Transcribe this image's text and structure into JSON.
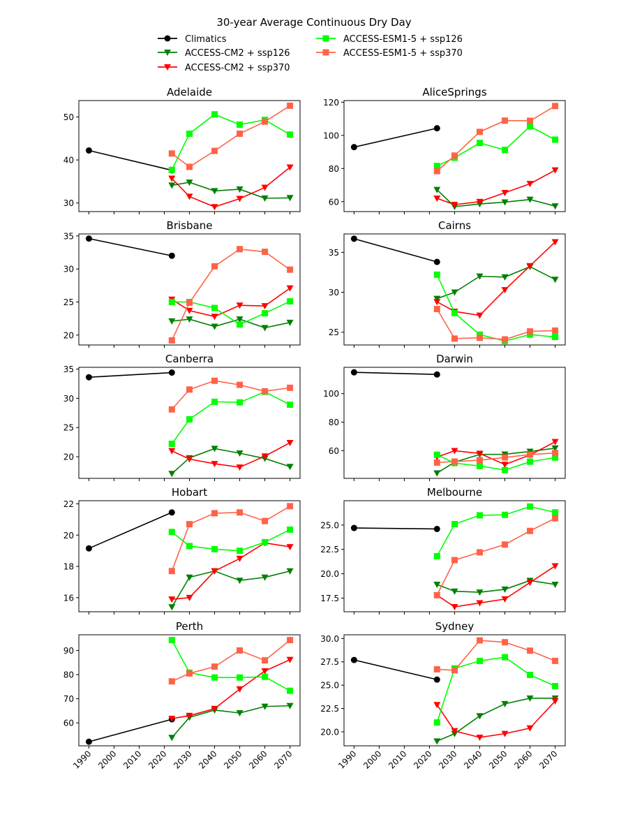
{
  "chart_data": {
    "type": "line",
    "title": "30-year Average Continuous Dry Day",
    "legend_placement": "top-center",
    "x_ticks": [
      1990,
      2000,
      2010,
      2020,
      2030,
      2040,
      2050,
      2060,
      2070
    ],
    "xlim": [
      1986,
      2074
    ],
    "grid": false,
    "series_styles": [
      {
        "name": "Climatics",
        "color": "#000000",
        "marker": "circle"
      },
      {
        "name": "ACCESS-CM2 + ssp126",
        "color": "#008000",
        "marker": "triangle-down"
      },
      {
        "name": "ACCESS-CM2 + ssp370",
        "color": "#ff0000",
        "marker": "triangle-down"
      },
      {
        "name": "ACCESS-ESM1-5 + ssp126",
        "color": "#00ff00",
        "marker": "square"
      },
      {
        "name": "ACCESS-ESM1-5 + ssp370",
        "color": "#ff6347",
        "marker": "square"
      }
    ],
    "climatics_x": [
      1990,
      2023
    ],
    "model_x": [
      2023,
      2030,
      2040,
      2050,
      2060,
      2070
    ],
    "panels": [
      {
        "title": "Adelaide",
        "ylim": [
          28,
          53.8
        ],
        "yticks": [
          "30",
          "40",
          "50"
        ],
        "series": [
          [
            42.2,
            37.6
          ],
          [
            34.1,
            34.8,
            32.8,
            33.2,
            31.1,
            31.2
          ],
          [
            35.7,
            31.5,
            29.1,
            31.0,
            33.6,
            38.3
          ],
          [
            37.7,
            46.1,
            50.6,
            48.2,
            49.3,
            45.9
          ],
          [
            41.5,
            38.4,
            42.1,
            46.1,
            48.9,
            52.6
          ]
        ]
      },
      {
        "title": "AliceSprings",
        "ylim": [
          54,
          121
        ],
        "yticks": [
          "60",
          "80",
          "100",
          "120"
        ],
        "series": [
          [
            92.9,
            104.3
          ],
          [
            67.2,
            57.0,
            58.6,
            59.7,
            61.3,
            57.3
          ],
          [
            62.0,
            58.2,
            60.0,
            65.4,
            70.8,
            79.0
          ],
          [
            81.5,
            86.5,
            95.4,
            91.2,
            105.4,
            97.4
          ],
          [
            78.4,
            87.8,
            102.1,
            108.9,
            108.8,
            117.7
          ]
        ]
      },
      {
        "title": "Brisbane",
        "ylim": [
          18.5,
          35.3
        ],
        "yticks": [
          "20",
          "25",
          "30",
          "35"
        ],
        "series": [
          [
            34.6,
            32.0
          ],
          [
            22.1,
            22.4,
            21.3,
            22.4,
            21.1,
            21.9
          ],
          [
            25.4,
            23.7,
            22.8,
            24.5,
            24.4,
            27.1
          ],
          [
            25.0,
            25.0,
            24.1,
            21.6,
            23.3,
            25.1
          ],
          [
            19.2,
            24.9,
            30.4,
            33.0,
            32.6,
            29.9
          ]
        ]
      },
      {
        "title": "Cairns",
        "ylim": [
          23.4,
          37.3
        ],
        "yticks": [
          "25",
          "30",
          "35"
        ],
        "series": [
          [
            36.7,
            33.8
          ],
          [
            29.2,
            30.0,
            32.0,
            31.9,
            33.2,
            31.6
          ],
          [
            28.8,
            27.6,
            27.1,
            30.3,
            33.3,
            36.3
          ],
          [
            32.2,
            27.4,
            24.7,
            23.9,
            24.7,
            24.4
          ],
          [
            27.9,
            24.2,
            24.3,
            24.1,
            25.1,
            25.2
          ]
        ]
      },
      {
        "title": "Canberra",
        "ylim": [
          16.3,
          35.3
        ],
        "yticks": [
          "20",
          "25",
          "30",
          "35"
        ],
        "series": [
          [
            33.6,
            34.4
          ],
          [
            17.1,
            19.8,
            21.4,
            20.6,
            19.7,
            18.3
          ],
          [
            21.0,
            19.6,
            18.8,
            18.2,
            20.1,
            22.4
          ],
          [
            22.2,
            26.4,
            29.4,
            29.3,
            31.1,
            28.9
          ],
          [
            28.1,
            31.5,
            33.0,
            32.3,
            31.2,
            31.8
          ]
        ]
      },
      {
        "title": "Darwin",
        "ylim": [
          40.5,
          118.5
        ],
        "yticks": [
          "60",
          "80",
          "100"
        ],
        "series": [
          [
            115.0,
            113.5
          ],
          [
            44.2,
            51.9,
            57.3,
            57.4,
            59.4,
            61.7
          ],
          [
            55.5,
            59.9,
            58.0,
            50.2,
            56.9,
            66.2
          ],
          [
            57.1,
            51.2,
            49.2,
            46.3,
            52.2,
            55.1
          ],
          [
            51.6,
            52.3,
            53.3,
            55.2,
            57.2,
            58.3
          ]
        ]
      },
      {
        "title": "Hobart",
        "ylim": [
          15.1,
          22.2
        ],
        "yticks": [
          "16",
          "18",
          "20",
          "22"
        ],
        "series": [
          [
            19.15,
            21.45
          ],
          [
            15.4,
            17.3,
            17.7,
            17.1,
            17.3,
            17.7
          ],
          [
            15.9,
            16.0,
            17.7,
            18.5,
            19.5,
            19.25
          ],
          [
            20.2,
            19.3,
            19.1,
            19.0,
            19.55,
            20.35
          ],
          [
            17.7,
            20.7,
            21.4,
            21.45,
            20.9,
            21.85
          ]
        ]
      },
      {
        "title": "Melbourne",
        "ylim": [
          16.1,
          27.5
        ],
        "yticks": [
          "17.5",
          "20.0",
          "22.5",
          "25.0"
        ],
        "series": [
          [
            24.7,
            24.6
          ],
          [
            18.9,
            18.2,
            18.1,
            18.4,
            19.3,
            18.9
          ],
          [
            17.8,
            16.6,
            17.0,
            17.4,
            19.1,
            20.8
          ],
          [
            21.8,
            25.1,
            26.0,
            26.05,
            26.9,
            26.3
          ],
          [
            17.8,
            21.4,
            22.2,
            23.0,
            24.4,
            25.7
          ]
        ]
      },
      {
        "title": "Perth",
        "ylim": [
          50.5,
          96.5
        ],
        "yticks": [
          "60",
          "70",
          "80",
          "90"
        ],
        "series": [
          [
            52.2,
            61.5
          ],
          [
            53.9,
            62.3,
            65.3,
            64.1,
            66.8,
            67.1
          ],
          [
            61.8,
            63.0,
            65.9,
            74.0,
            81.5,
            86.2
          ],
          [
            94.3,
            80.8,
            78.8,
            78.8,
            79.1,
            73.3
          ],
          [
            77.2,
            80.5,
            83.3,
            90.0,
            85.9,
            94.3
          ]
        ]
      },
      {
        "title": "Sydney",
        "ylim": [
          18.5,
          30.4
        ],
        "yticks": [
          "20.0",
          "22.5",
          "25.0",
          "27.5",
          "30.0"
        ],
        "series": [
          [
            27.7,
            25.6
          ],
          [
            19.0,
            19.8,
            21.7,
            23.0,
            23.6,
            23.6
          ],
          [
            22.9,
            20.1,
            19.4,
            19.8,
            20.4,
            23.3
          ],
          [
            21.0,
            26.8,
            27.6,
            28.0,
            26.1,
            24.9
          ],
          [
            26.7,
            26.6,
            29.8,
            29.6,
            28.7,
            27.6
          ]
        ]
      }
    ]
  }
}
